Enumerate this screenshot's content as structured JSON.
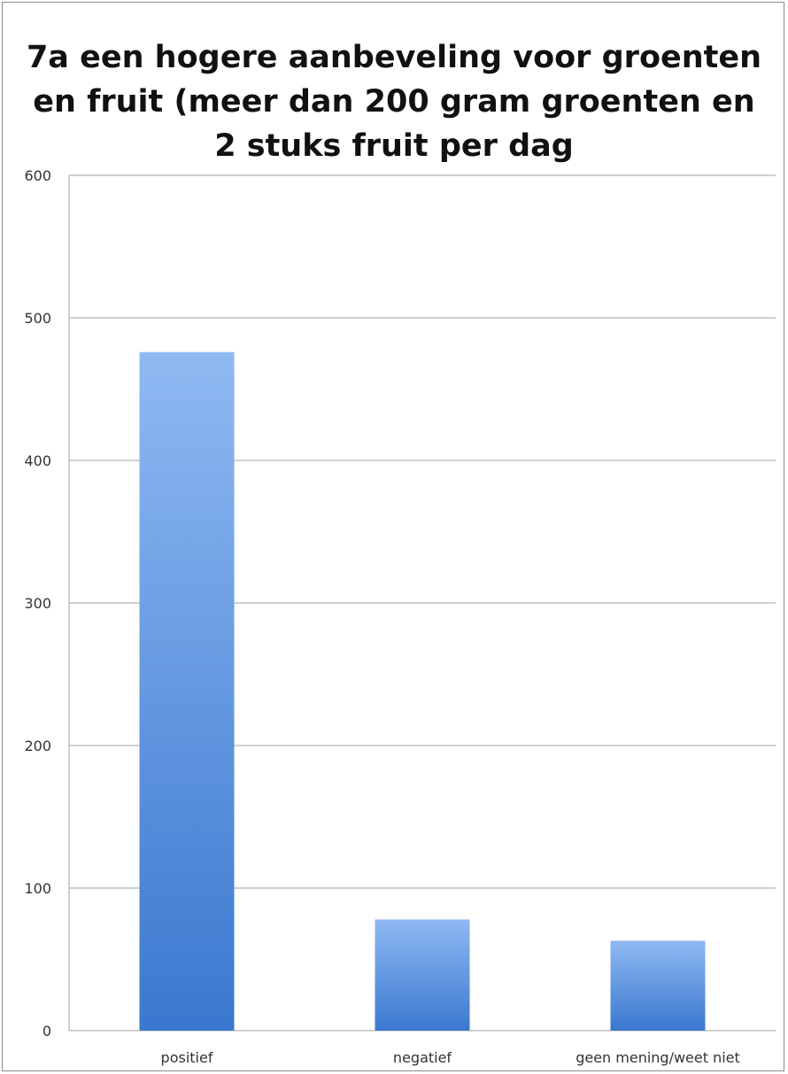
{
  "chart_data": {
    "type": "bar",
    "title_lines": [
      "7a een hogere aanbeveling voor groenten",
      "en fruit (meer dan 200 gram groenten en",
      "2 stuks fruit per dag"
    ],
    "categories": [
      "positief",
      "negatief",
      "geen mening/weet niet"
    ],
    "values": [
      476,
      78,
      63
    ],
    "ylim": [
      0,
      600
    ],
    "yticks": [
      0,
      100,
      200,
      300,
      400,
      500,
      600
    ],
    "grid": true,
    "legend": "none",
    "bar_color_top": "#8fb9f2",
    "bar_color_bottom": "#3a78cf",
    "gridline_color": "#a0a0a0"
  }
}
